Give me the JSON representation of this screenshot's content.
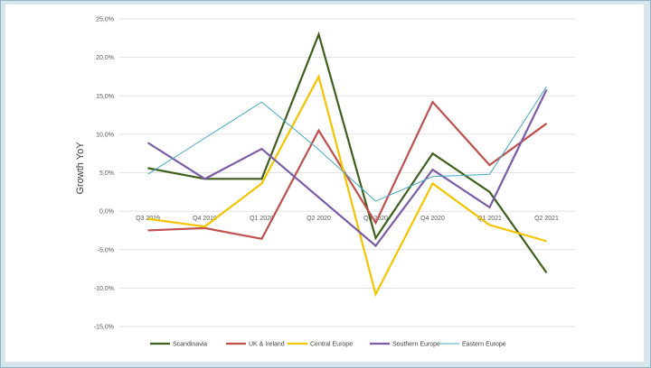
{
  "chart_data": {
    "type": "line",
    "title": "",
    "xlabel": "",
    "ylabel": "Growth YoY",
    "categories": [
      "Q3 2019",
      "Q4 2019",
      "Q1 2020",
      "Q2 2020",
      "Q3 2020",
      "Q4 2020",
      "Q1 2021",
      "Q2 2021"
    ],
    "ylim": [
      -15,
      25
    ],
    "yticks": [
      25,
      20,
      15,
      10,
      5,
      0,
      -5,
      -10,
      -15
    ],
    "ytick_labels": [
      "25,0%",
      "20,0%",
      "15,0%",
      "10,0%",
      "5,0%",
      "0,0%",
      "-5,0%",
      "-10,0%",
      "-15,0%"
    ],
    "grid": "horizontal",
    "legend_position": "bottom",
    "series": [
      {
        "name": "Scandinavia",
        "color": "#3f5f1f",
        "values": [
          5.6,
          4.2,
          4.2,
          23.0,
          -3.5,
          7.5,
          2.5,
          -8.0
        ]
      },
      {
        "name": "UK & Ireland",
        "color": "#c0504d",
        "values": [
          -2.5,
          -2.2,
          -3.6,
          10.5,
          -1.5,
          14.2,
          6.0,
          11.4
        ]
      },
      {
        "name": "Central Europe",
        "color": "#f5c400",
        "values": [
          -1.0,
          -2.0,
          3.6,
          17.5,
          -10.8,
          3.6,
          -1.8,
          -3.9
        ]
      },
      {
        "name": "Southern Europe",
        "color": "#7a5ba6",
        "values": [
          8.9,
          4.2,
          8.1,
          1.8,
          -4.5,
          5.4,
          0.5,
          15.8
        ]
      },
      {
        "name": "Eastern Europe",
        "color": "#46aac4",
        "values": [
          4.8,
          9.5,
          14.2,
          8.0,
          1.3,
          4.5,
          4.8,
          16.2
        ]
      }
    ]
  }
}
